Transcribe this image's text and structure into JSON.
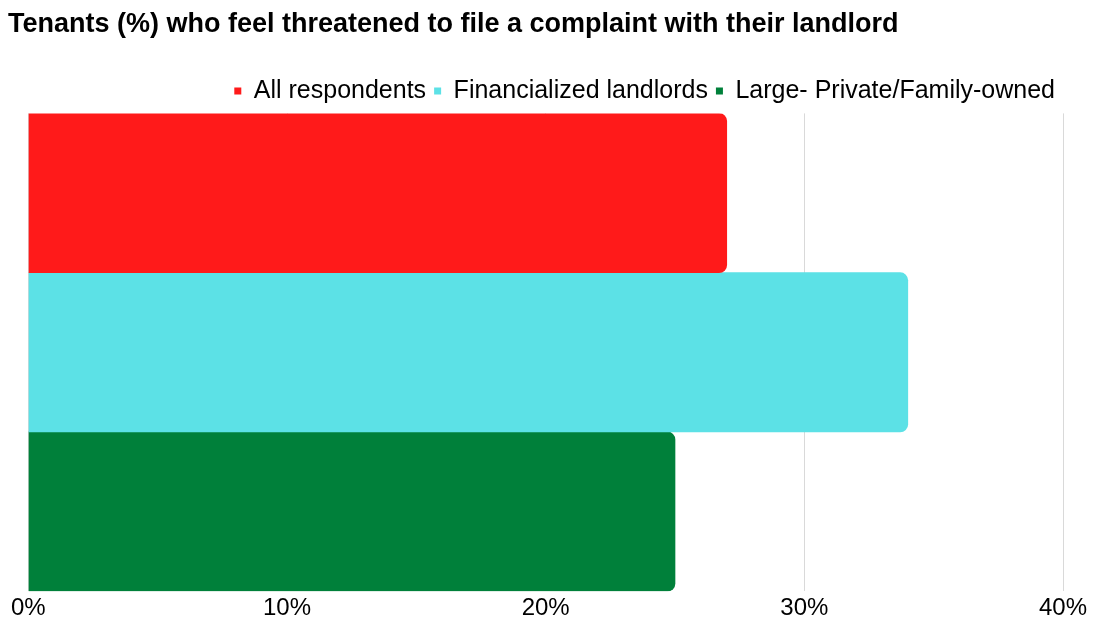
{
  "chart_data": {
    "type": "bar",
    "orientation": "horizontal",
    "title": "Tenants (%) who feel threatened to file a complaint with their landlord",
    "categories": [
      null
    ],
    "series": [
      {
        "name": "All respondents",
        "color": "#ff1a1a",
        "values": [
          27
        ]
      },
      {
        "name": "Financialized landlords",
        "color": "#5ce1e6",
        "values": [
          34
        ]
      },
      {
        "name": "Large- Private/Family-owned",
        "color": "#00803a",
        "values": [
          25
        ]
      }
    ],
    "xlim": [
      0,
      40
    ],
    "xticks": [
      {
        "value": 0,
        "label": "0%"
      },
      {
        "value": 10,
        "label": "10%"
      },
      {
        "value": 20,
        "label": "20%"
      },
      {
        "value": 30,
        "label": "30%"
      },
      {
        "value": 40,
        "label": "40%"
      }
    ],
    "grid": "x",
    "legend": "top"
  }
}
